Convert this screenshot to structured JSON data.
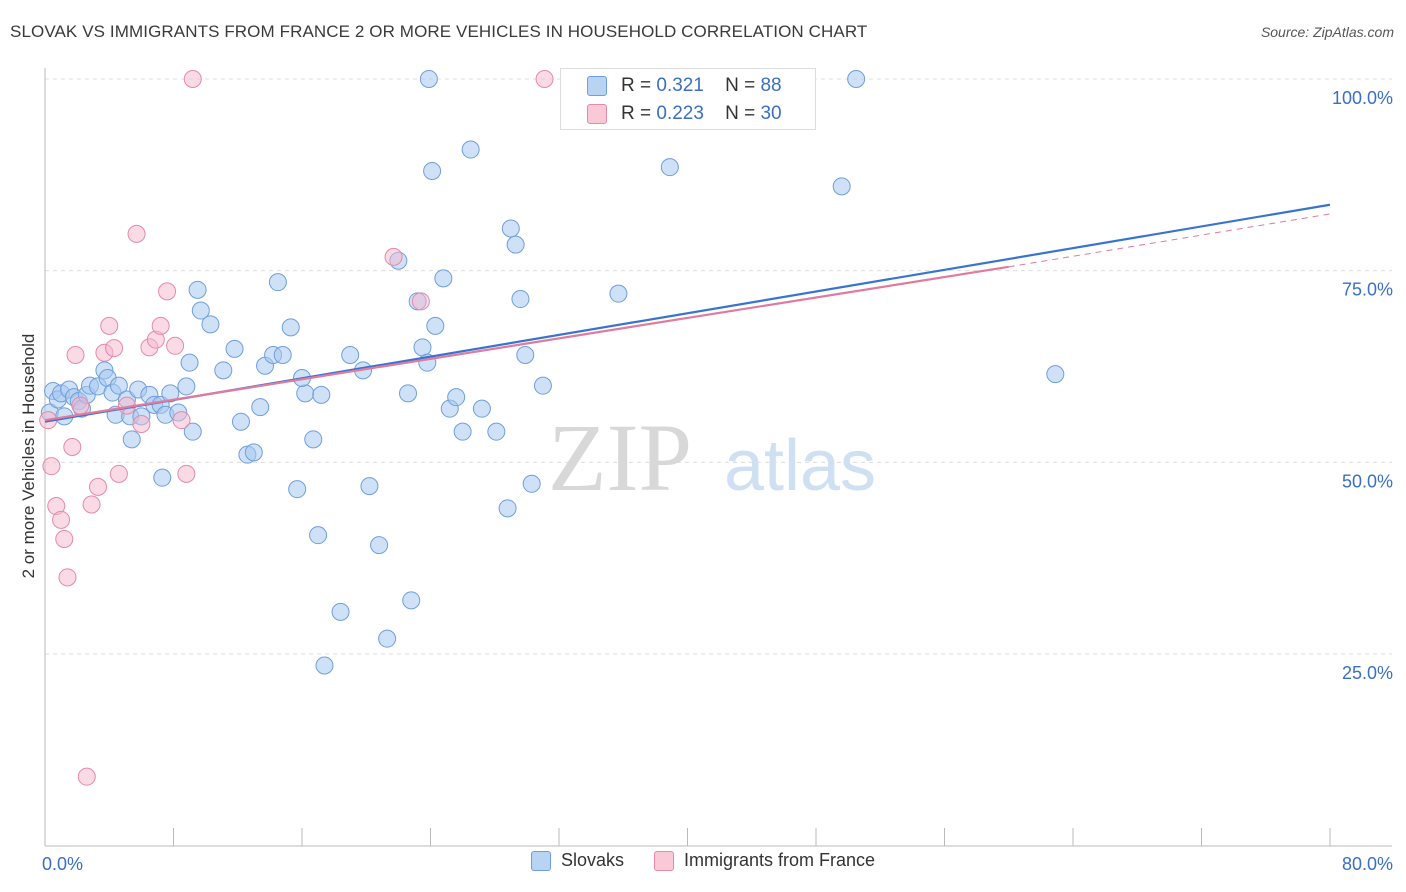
{
  "title": "SLOVAK VS IMMIGRANTS FROM FRANCE 2 OR MORE VEHICLES IN HOUSEHOLD CORRELATION CHART",
  "source": "Source: ZipAtlas.com",
  "watermark": {
    "zip": "ZIP",
    "atlas": "atlas"
  },
  "colors": {
    "blue_fill": "#a8c8f0",
    "blue_stroke": "#6f9fdc",
    "blue_line": "#3874cf",
    "pink_fill": "#f6b8cb",
    "pink_stroke": "#e58aa8",
    "pink_line": "#e07a9f",
    "axis_label": "#3a6fc4",
    "grid": "#dddddd"
  },
  "stats": [
    {
      "r_label": "R =",
      "r_value": "0.321",
      "n_label": "N =",
      "n_value": "88"
    },
    {
      "r_label": "R =",
      "r_value": "0.223",
      "n_label": "N =",
      "n_value": "30"
    }
  ],
  "chart_data": {
    "type": "scatter",
    "title": "SLOVAK VS IMMIGRANTS FROM FRANCE 2 OR MORE VEHICLES IN HOUSEHOLD CORRELATION CHART",
    "xlabel": "",
    "ylabel": "2 or more Vehicles in Household",
    "xlim": [
      0,
      80
    ],
    "ylim": [
      0,
      105
    ],
    "x_tick_labels": [
      "0.0%",
      "80.0%"
    ],
    "y_ticks": [
      25,
      50,
      75,
      100
    ],
    "y_tick_labels": [
      "25.0%",
      "50.0%",
      "75.0%",
      "100.0%"
    ],
    "grid": "horizontal dashed",
    "legend": "bottom",
    "series": [
      {
        "name": "Slovaks",
        "color": "#a8c8f0",
        "trend": {
          "x": [
            0,
            80
          ],
          "y": [
            55.3,
            83.6
          ]
        },
        "points": [
          [
            0.3,
            56.5
          ],
          [
            0.5,
            59.3
          ],
          [
            0.8,
            58.2
          ],
          [
            1.0,
            59.0
          ],
          [
            1.2,
            56.0
          ],
          [
            1.5,
            59.5
          ],
          [
            1.8,
            58.5
          ],
          [
            2.1,
            58.0
          ],
          [
            2.3,
            57.0
          ],
          [
            2.6,
            58.8
          ],
          [
            2.8,
            60.0
          ],
          [
            3.3,
            59.9
          ],
          [
            3.7,
            62.0
          ],
          [
            3.9,
            61.0
          ],
          [
            4.2,
            59.1
          ],
          [
            4.4,
            56.2
          ],
          [
            4.6,
            60.0
          ],
          [
            5.1,
            58.2
          ],
          [
            5.3,
            56.0
          ],
          [
            5.8,
            59.5
          ],
          [
            6.0,
            56.0
          ],
          [
            6.5,
            58.8
          ],
          [
            6.8,
            57.5
          ],
          [
            7.2,
            57.5
          ],
          [
            7.5,
            56.2
          ],
          [
            7.8,
            59.0
          ],
          [
            8.3,
            56.5
          ],
          [
            8.8,
            59.9
          ],
          [
            9.0,
            63.0
          ],
          [
            9.2,
            54.0
          ],
          [
            9.5,
            72.5
          ],
          [
            9.7,
            69.8
          ],
          [
            10.3,
            68.0
          ],
          [
            11.1,
            62.0
          ],
          [
            11.8,
            64.8
          ],
          [
            12.2,
            55.3
          ],
          [
            12.6,
            51.0
          ],
          [
            13.0,
            51.3
          ],
          [
            13.4,
            57.2
          ],
          [
            13.7,
            62.6
          ],
          [
            14.2,
            64.0
          ],
          [
            14.5,
            73.5
          ],
          [
            14.8,
            64.0
          ],
          [
            15.3,
            67.6
          ],
          [
            15.7,
            46.5
          ],
          [
            16.2,
            59.0
          ],
          [
            16.7,
            53.0
          ],
          [
            17.0,
            40.5
          ],
          [
            17.4,
            23.5
          ],
          [
            18.4,
            30.5
          ],
          [
            17.2,
            58.8
          ],
          [
            16.0,
            61.0
          ],
          [
            19.0,
            64.0
          ],
          [
            19.8,
            62.0
          ],
          [
            20.2,
            46.9
          ],
          [
            20.8,
            39.2
          ],
          [
            21.3,
            27.0
          ],
          [
            22.0,
            76.3
          ],
          [
            22.6,
            59.0
          ],
          [
            22.8,
            32.0
          ],
          [
            23.2,
            71.0
          ],
          [
            23.5,
            65.0
          ],
          [
            23.8,
            63.0
          ],
          [
            24.1,
            88.0
          ],
          [
            24.3,
            67.8
          ],
          [
            24.8,
            74.0
          ],
          [
            25.2,
            57.0
          ],
          [
            25.6,
            58.5
          ],
          [
            26.0,
            54.0
          ],
          [
            26.5,
            90.8
          ],
          [
            27.2,
            57.0
          ],
          [
            28.1,
            54.0
          ],
          [
            28.8,
            44.0
          ],
          [
            29.0,
            80.5
          ],
          [
            29.3,
            78.4
          ],
          [
            29.6,
            71.3
          ],
          [
            29.9,
            64.0
          ],
          [
            30.3,
            47.2
          ],
          [
            31.0,
            60.0
          ],
          [
            35.7,
            72.0
          ],
          [
            38.6,
            100.0
          ],
          [
            38.9,
            88.5
          ],
          [
            49.6,
            86.0
          ],
          [
            50.5,
            100.0
          ],
          [
            62.9,
            61.5
          ],
          [
            23.9,
            100.0
          ],
          [
            5.4,
            53.0
          ],
          [
            7.3,
            48.0
          ]
        ]
      },
      {
        "name": "Immigrants from France",
        "color": "#f6b8cb",
        "trend": {
          "x": [
            0,
            60
          ],
          "y": [
            55.5,
            75.5
          ]
        },
        "trend_dashed_ext": {
          "x": [
            60,
            80
          ],
          "y": [
            75.5,
            82.4
          ]
        },
        "points": [
          [
            0.2,
            55.5
          ],
          [
            0.4,
            49.5
          ],
          [
            0.7,
            44.3
          ],
          [
            1.0,
            42.5
          ],
          [
            1.2,
            40.0
          ],
          [
            1.4,
            35.0
          ],
          [
            1.7,
            52.0
          ],
          [
            1.9,
            64.0
          ],
          [
            2.2,
            57.4
          ],
          [
            2.6,
            9.0
          ],
          [
            2.9,
            44.5
          ],
          [
            3.3,
            46.8
          ],
          [
            3.7,
            64.3
          ],
          [
            4.0,
            67.8
          ],
          [
            4.3,
            64.9
          ],
          [
            4.6,
            48.5
          ],
          [
            5.1,
            57.4
          ],
          [
            5.7,
            79.8
          ],
          [
            6.0,
            55.0
          ],
          [
            6.5,
            65.0
          ],
          [
            6.9,
            66.0
          ],
          [
            7.2,
            67.8
          ],
          [
            7.6,
            72.3
          ],
          [
            8.1,
            65.2
          ],
          [
            8.5,
            55.5
          ],
          [
            8.8,
            48.5
          ],
          [
            9.2,
            100.0
          ],
          [
            21.7,
            76.8
          ],
          [
            23.4,
            71.0
          ],
          [
            31.1,
            100.0
          ]
        ]
      }
    ]
  }
}
